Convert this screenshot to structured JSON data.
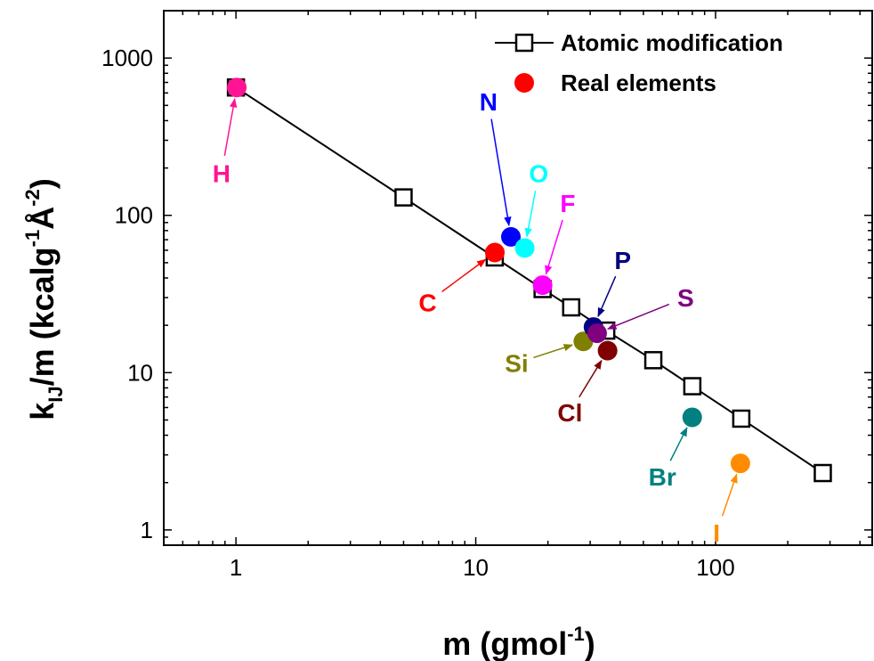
{
  "chart_data": {
    "type": "scatter",
    "xscale": "log",
    "yscale": "log",
    "xlim": [
      0.5,
      450
    ],
    "ylim": [
      0.8,
      2000
    ],
    "xticks": [
      1,
      10,
      100
    ],
    "yticks": [
      1,
      10,
      100,
      1000
    ],
    "xtick_labels": [
      "1",
      "10",
      "100"
    ],
    "ytick_labels": [
      "1",
      "10",
      "100",
      "1000"
    ],
    "xlabel": {
      "base": "m (gmol",
      "sup": "-1",
      "tail": ")"
    },
    "ylabel": {
      "k": "k",
      "sub": "IJ",
      "mid": "/m (kcalg",
      "sup1": "-1",
      "ang": "Å",
      "sup2": "-2",
      "tail": ")"
    },
    "legend_position": "top-right",
    "grid": false,
    "series": [
      {
        "name": "Atomic modification",
        "marker": "open-square",
        "line": true,
        "color": "#000000",
        "points": [
          {
            "x": 1,
            "y": 650
          },
          {
            "x": 5,
            "y": 130
          },
          {
            "x": 12,
            "y": 54
          },
          {
            "x": 19,
            "y": 34
          },
          {
            "x": 25,
            "y": 26
          },
          {
            "x": 35,
            "y": 18.5
          },
          {
            "x": 55,
            "y": 12
          },
          {
            "x": 80,
            "y": 8.2
          },
          {
            "x": 128,
            "y": 5.1
          },
          {
            "x": 280,
            "y": 2.3
          }
        ]
      },
      {
        "name": "Real elements",
        "marker": "filled-circle",
        "line": false,
        "color": "#ff0000",
        "points": [
          {
            "label": "H",
            "x": 1.008,
            "y": 650,
            "color": "#ff1493"
          },
          {
            "label": "C",
            "x": 12.01,
            "y": 58,
            "color": "#ff0000"
          },
          {
            "label": "N",
            "x": 14.01,
            "y": 73,
            "color": "#0000ff"
          },
          {
            "label": "O",
            "x": 16.0,
            "y": 62,
            "color": "#00ffff"
          },
          {
            "label": "F",
            "x": 19.0,
            "y": 36,
            "color": "#ff00ff"
          },
          {
            "label": "Si",
            "x": 28.09,
            "y": 15.8,
            "color": "#808000"
          },
          {
            "label": "P",
            "x": 30.97,
            "y": 19.5,
            "color": "#000080"
          },
          {
            "label": "S",
            "x": 32.07,
            "y": 17.8,
            "color": "#800080"
          },
          {
            "label": "Cl",
            "x": 35.45,
            "y": 13.8,
            "color": "#800000"
          },
          {
            "label": "Br",
            "x": 79.9,
            "y": 5.2,
            "color": "#008080"
          },
          {
            "label": "I",
            "x": 126.9,
            "y": 2.65,
            "color": "#ff8c00"
          }
        ]
      }
    ],
    "annotations": [
      {
        "text": "H",
        "x": 0.87,
        "y": 185,
        "target": "H",
        "color": "#ff1493"
      },
      {
        "text": "C",
        "x": 6.3,
        "y": 28,
        "target": "C",
        "color": "#ff0000"
      },
      {
        "text": "N",
        "x": 11.3,
        "y": 530,
        "target": "N",
        "color": "#0000ff"
      },
      {
        "text": "O",
        "x": 18.3,
        "y": 185,
        "target": "O",
        "color": "#00ffff"
      },
      {
        "text": "F",
        "x": 24.2,
        "y": 120,
        "target": "F",
        "color": "#ff00ff"
      },
      {
        "text": "P",
        "x": 41,
        "y": 52,
        "target": "P",
        "color": "#000080"
      },
      {
        "text": "S",
        "x": 75,
        "y": 30,
        "target": "S",
        "color": "#800080"
      },
      {
        "text": "Si",
        "x": 14.8,
        "y": 11.5,
        "target": "Si",
        "color": "#808000"
      },
      {
        "text": "Cl",
        "x": 24.7,
        "y": 5.6,
        "target": "Cl",
        "color": "#800000"
      },
      {
        "text": "Br",
        "x": 60,
        "y": 2.18,
        "target": "Br",
        "color": "#008080"
      },
      {
        "text": "I",
        "x": 101,
        "y": 0.96,
        "target": "I",
        "color": "#ff8c00"
      }
    ]
  }
}
